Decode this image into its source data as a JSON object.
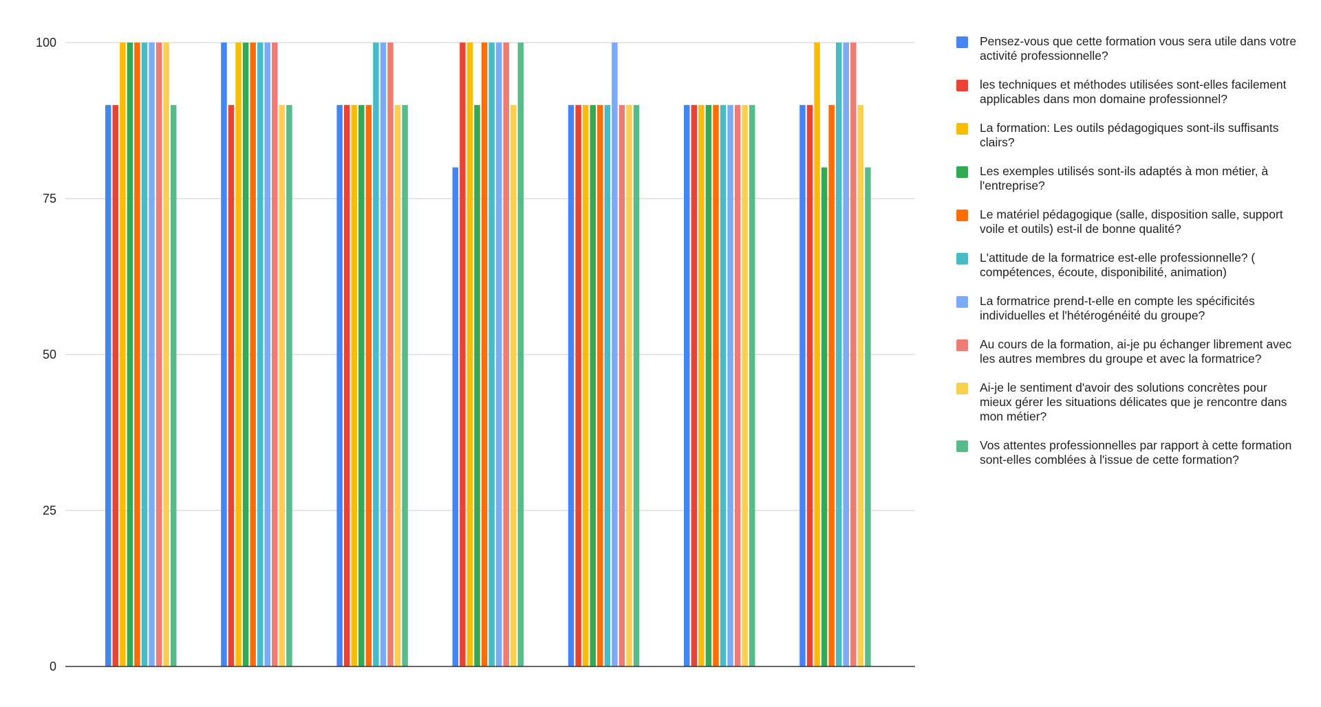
{
  "chart_data": {
    "type": "bar",
    "title": "",
    "xlabel": "",
    "ylabel": "",
    "ylim": [
      0,
      100
    ],
    "yticks": [
      "0",
      "25",
      "50",
      "75",
      "100"
    ],
    "grid": true,
    "legend_position": "right",
    "categories": [
      "",
      "",
      "",
      "",
      "",
      "",
      ""
    ],
    "series": [
      {
        "name": "Pensez-vous que cette formation vous sera utile dans votre activité professionnelle?",
        "color": "#4285F4",
        "values": [
          90,
          100,
          90,
          80,
          90,
          90,
          90
        ]
      },
      {
        "name": "les techniques et méthodes utilisées sont-elles facilement applicables dans mon domaine professionnel?",
        "color": "#EA4335",
        "values": [
          90,
          90,
          90,
          100,
          90,
          90,
          90
        ]
      },
      {
        "name": "La formation: Les outils pédagogiques sont-ils suffisants clairs?",
        "color": "#FBBC04",
        "values": [
          100,
          100,
          90,
          100,
          90,
          90,
          100
        ]
      },
      {
        "name": "Les exemples utilisés sont-ils adaptés à mon métier, à l'entreprise?",
        "color": "#34A853",
        "values": [
          100,
          100,
          90,
          90,
          90,
          90,
          80
        ]
      },
      {
        "name": "Le matériel pédagogique (salle, disposition salle, support voile  et outils) est-il de bonne qualité?",
        "color": "#FF6D01",
        "values": [
          100,
          100,
          90,
          100,
          90,
          90,
          90
        ]
      },
      {
        "name": "L'attitude de la formatrice est-elle professionnelle? ( compétences, écoute, disponibilité, animation)",
        "color": "#46BDC6",
        "values": [
          100,
          100,
          100,
          100,
          90,
          90,
          100
        ]
      },
      {
        "name": "La formatrice prend-t-elle en compte les spécificités individuelles et l'hétérogénéité du groupe?",
        "color": "#7BAAF7",
        "values": [
          100,
          100,
          100,
          100,
          100,
          90,
          100
        ]
      },
      {
        "name": "Au cours de la formation, ai-je pu échanger librement avec les autres membres du groupe et avec la formatrice?",
        "color": "#F07B72",
        "values": [
          100,
          100,
          100,
          100,
          90,
          90,
          100
        ]
      },
      {
        "name": "Ai-je le sentiment d'avoir des solutions concrètes pour mieux gérer les situations délicates que je rencontre dans mon métier?",
        "color": "#FCD04F",
        "values": [
          100,
          90,
          90,
          90,
          90,
          90,
          90
        ]
      },
      {
        "name": "Vos attentes professionnelles par rapport à cette formation sont-elles comblées à l'issue de cette formation?",
        "color": "#57BB8A",
        "values": [
          90,
          90,
          90,
          100,
          90,
          90,
          80
        ]
      }
    ]
  }
}
